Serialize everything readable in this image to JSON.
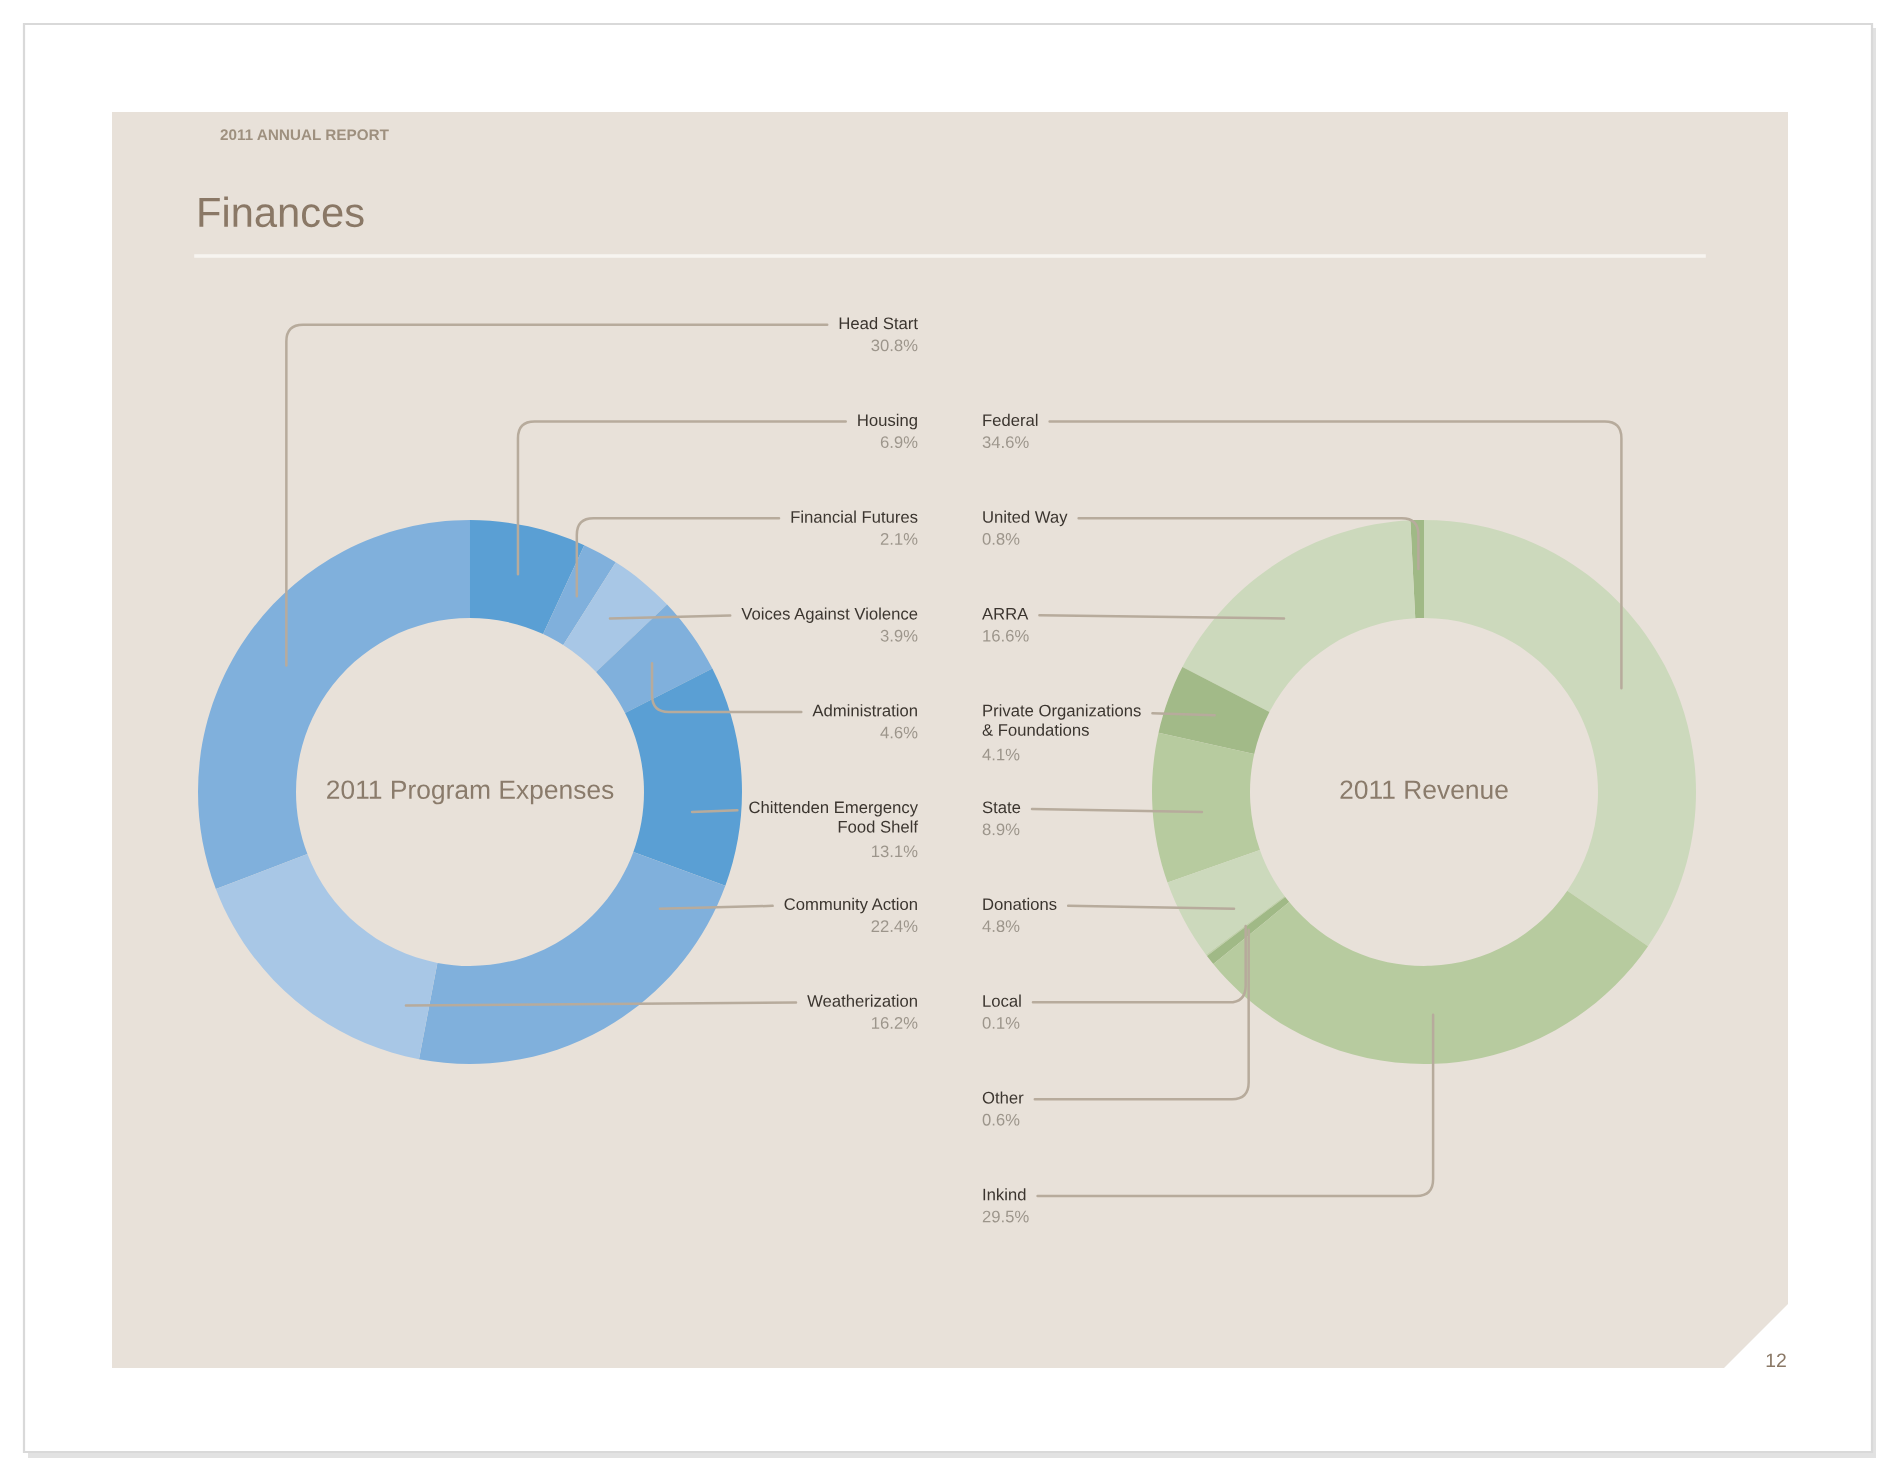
{
  "chart_data": [
    {
      "type": "donut",
      "title": "2011 Program Expenses",
      "categories": [
        "Head Start",
        "Housing",
        "Financial Futures",
        "Voices Against Violence",
        "Administration",
        "Chittenden Emergency\nFood Shelf",
        "Community Action",
        "Weatherization"
      ],
      "values": [
        30.8,
        6.9,
        2.1,
        3.9,
        4.6,
        13.1,
        22.4,
        16.2
      ],
      "value_labels": [
        "30.8%",
        "6.9%",
        "2.1%",
        "3.9%",
        "4.6%",
        "13.1%",
        "22.4%",
        "16.2%"
      ],
      "colors": [
        "#80b0dc",
        "#5a9fd4",
        "#80b0dc",
        "#a8c7e6",
        "#80b0dc",
        "#5a9fd4",
        "#80b0dc",
        "#a8c7e6"
      ],
      "annotations": [
        "2011 ANNUAL REPORT",
        "Finances",
        "12"
      ]
    },
    {
      "type": "donut",
      "title": "2011 Revenue",
      "categories": [
        "Federal",
        "United Way",
        "ARRA",
        "Private Organizations\n& Foundations",
        "State",
        "Donations",
        "Local",
        "Other",
        "Inkind"
      ],
      "values": [
        34.6,
        0.8,
        16.6,
        4.1,
        8.9,
        4.8,
        0.1,
        0.6,
        29.5
      ],
      "value_labels": [
        "34.6%",
        "0.8%",
        "16.6%",
        "4.1%",
        "8.9%",
        "4.8%",
        "0.1%",
        "0.6%",
        "29.5%"
      ],
      "colors": [
        "#ccd9bc",
        "#a0b986",
        "#ccd9bc",
        "#a2ba88",
        "#b7cb9f",
        "#ccd9bc",
        "#c0d1ab",
        "#a0b986",
        "#b7cb9f"
      ]
    }
  ]
}
